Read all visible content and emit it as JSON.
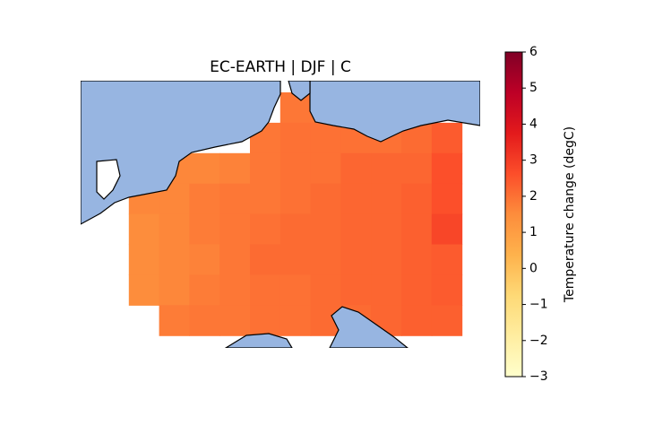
{
  "chart_data": {
    "type": "heatmap",
    "title": "EC-EARTH | DJF | C",
    "colorbar_label": "Temperature change (degC)",
    "colormap": "YlOrRd",
    "clim": [
      -3,
      6
    ],
    "cticks": [
      {
        "value": -3,
        "label": "−3"
      },
      {
        "value": -2,
        "label": "−2"
      },
      {
        "value": -1,
        "label": "−1"
      },
      0,
      1,
      2,
      3,
      4,
      5,
      6
    ],
    "values": [
      [
        null,
        null,
        null,
        null,
        null,
        null,
        1.9,
        1.9,
        1.9,
        null,
        null,
        null
      ],
      [
        null,
        null,
        null,
        null,
        null,
        1.9,
        2.0,
        2.0,
        2.0,
        2.0,
        2.1,
        2.4
      ],
      [
        null,
        null,
        1.6,
        1.6,
        1.7,
        1.9,
        2.0,
        2.0,
        2.2,
        2.2,
        2.2,
        2.6
      ],
      [
        null,
        1.6,
        1.6,
        1.8,
        1.9,
        1.9,
        2.0,
        2.1,
        2.2,
        2.2,
        2.3,
        2.6
      ],
      [
        null,
        1.5,
        1.6,
        1.8,
        1.9,
        2.0,
        2.1,
        2.1,
        2.2,
        2.2,
        2.3,
        2.8
      ],
      [
        null,
        1.5,
        1.6,
        1.7,
        1.9,
        2.1,
        2.1,
        2.1,
        2.2,
        2.2,
        2.3,
        2.4
      ],
      [
        null,
        1.5,
        1.6,
        1.8,
        1.9,
        2.0,
        2.0,
        2.1,
        2.2,
        2.2,
        2.3,
        2.4
      ],
      [
        null,
        null,
        1.8,
        1.9,
        1.9,
        2.0,
        2.0,
        2.1,
        2.1,
        2.2,
        2.3,
        2.3
      ]
    ]
  }
}
